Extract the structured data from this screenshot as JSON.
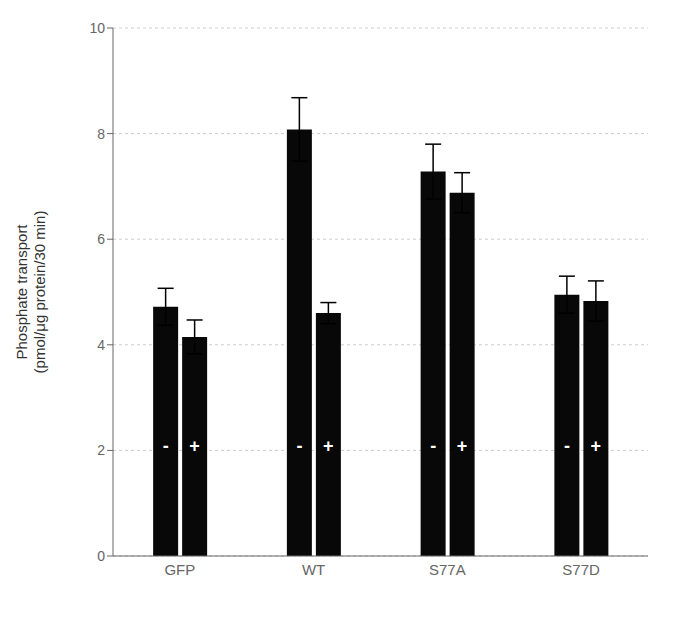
{
  "chart_data": {
    "type": "bar",
    "ylabel": "Phosphate transport\n(pmol/μg protein/30 min)",
    "categories": [
      "GFP",
      "WT",
      "S77A",
      "S77D"
    ],
    "series": [
      {
        "name": "-",
        "color": "#080808",
        "values": [
          4.72,
          8.08,
          7.28,
          4.95
        ],
        "errors": [
          0.35,
          0.6,
          0.52,
          0.35
        ]
      },
      {
        "name": "+",
        "color": "#080808",
        "values": [
          4.15,
          4.6,
          6.88,
          4.83
        ],
        "errors": [
          0.32,
          0.2,
          0.38,
          0.38
        ]
      }
    ],
    "ylim": [
      0,
      10
    ],
    "yticks": [
      0,
      2,
      4,
      6,
      8,
      10
    ],
    "grid": true
  }
}
